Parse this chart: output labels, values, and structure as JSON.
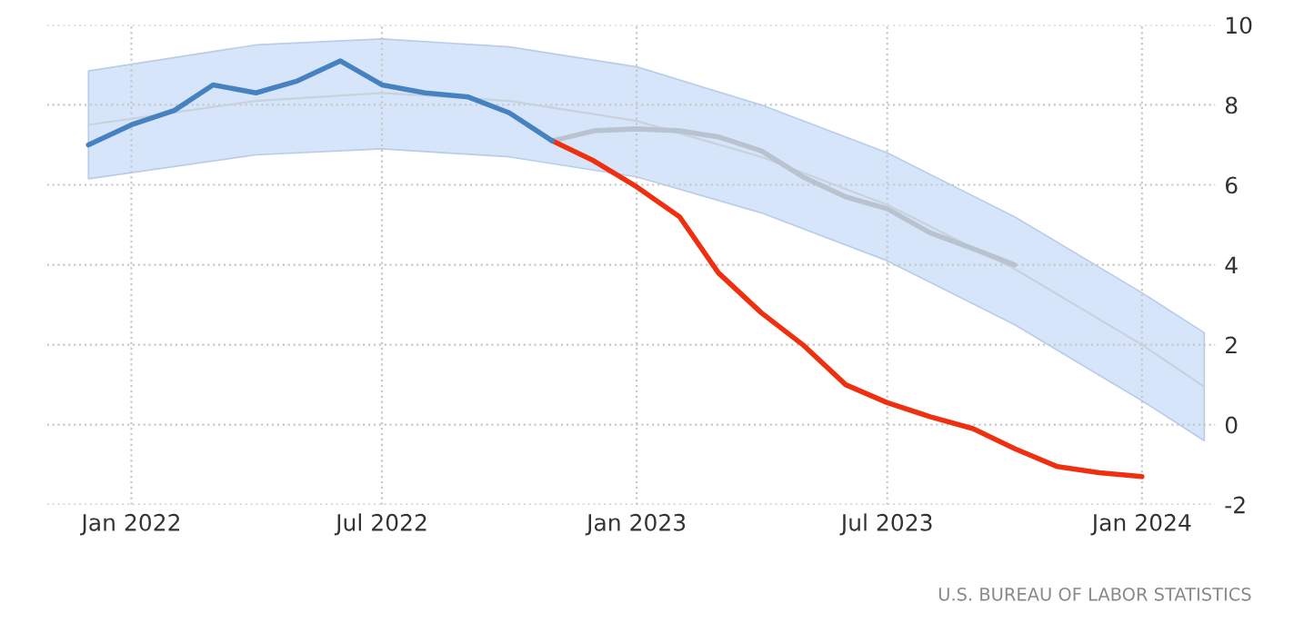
{
  "chart_data": {
    "type": "line",
    "series": [
      {
        "color": "#c8d2dc",
        "x": [
          "2021-12",
          "2022-04",
          "2022-07",
          "2022-10",
          "2023-01",
          "2023-04",
          "2023-07",
          "2023-10",
          "2024-01",
          "2024-02-15"
        ],
        "values": [
          7.5,
          8.1,
          8.3,
          8.1,
          7.6,
          6.7,
          5.5,
          3.9,
          2.0,
          0.95
        ],
        "lower": [
          6.15,
          6.75,
          6.9,
          6.7,
          6.2,
          5.3,
          4.1,
          2.5,
          0.6,
          -0.4
        ],
        "upper": [
          8.85,
          9.5,
          9.65,
          9.45,
          8.95,
          8.0,
          6.8,
          5.2,
          3.3,
          2.3
        ]
      },
      {
        "color": "#b9c3cf",
        "x": [
          "2022-11",
          "2022-12",
          "2023-01",
          "2023-02",
          "2023-03",
          "2023-04",
          "2023-05",
          "2023-06",
          "2023-07",
          "2023-08",
          "2023-09",
          "2023-10"
        ],
        "values": [
          7.1,
          7.35,
          7.4,
          7.35,
          7.2,
          6.85,
          6.2,
          5.7,
          5.4,
          4.8,
          4.4,
          4.0
        ]
      },
      {
        "color": "#ee3010",
        "x": [
          "2022-11",
          "2022-12",
          "2023-01",
          "2023-02",
          "2023-03",
          "2023-04",
          "2023-05",
          "2023-06",
          "2023-07",
          "2023-08",
          "2023-09",
          "2023-10",
          "2023-11",
          "2023-12",
          "2024-01"
        ],
        "values": [
          7.1,
          6.6,
          5.95,
          5.2,
          3.8,
          2.8,
          2.0,
          1.0,
          0.55,
          0.2,
          -0.1,
          -0.6,
          -1.05,
          -1.2,
          -1.3
        ]
      },
      {
        "color": "#4682c0",
        "x": [
          "2021-12",
          "2022-01",
          "2022-02",
          "2022-03",
          "2022-04",
          "2022-05",
          "2022-06",
          "2022-07",
          "2022-08",
          "2022-09",
          "2022-10",
          "2022-11"
        ],
        "values": [
          7.0,
          7.5,
          7.86,
          8.5,
          8.3,
          8.6,
          9.1,
          8.5,
          8.3,
          8.2,
          7.8,
          7.1
        ]
      }
    ],
    "xlim": [
      "2021-11",
      "2024-02-23"
    ],
    "xticks": [
      {
        "value": "2022-01",
        "label": "Jan 2022"
      },
      {
        "value": "2022-07",
        "label": "Jul 2022"
      },
      {
        "value": "2023-01",
        "label": "Jan 2023"
      },
      {
        "value": "2023-07",
        "label": "Jul 2023"
      },
      {
        "value": "2024-01",
        "label": "Jan 2024"
      }
    ],
    "ylim": [
      -2,
      10
    ],
    "yticks": [
      -2,
      0,
      2,
      4,
      6,
      8,
      10
    ],
    "grid": true,
    "line_style": "solid",
    "annotations": [
      "U.S. BUREAU OF LABOR STATISTICS"
    ]
  }
}
